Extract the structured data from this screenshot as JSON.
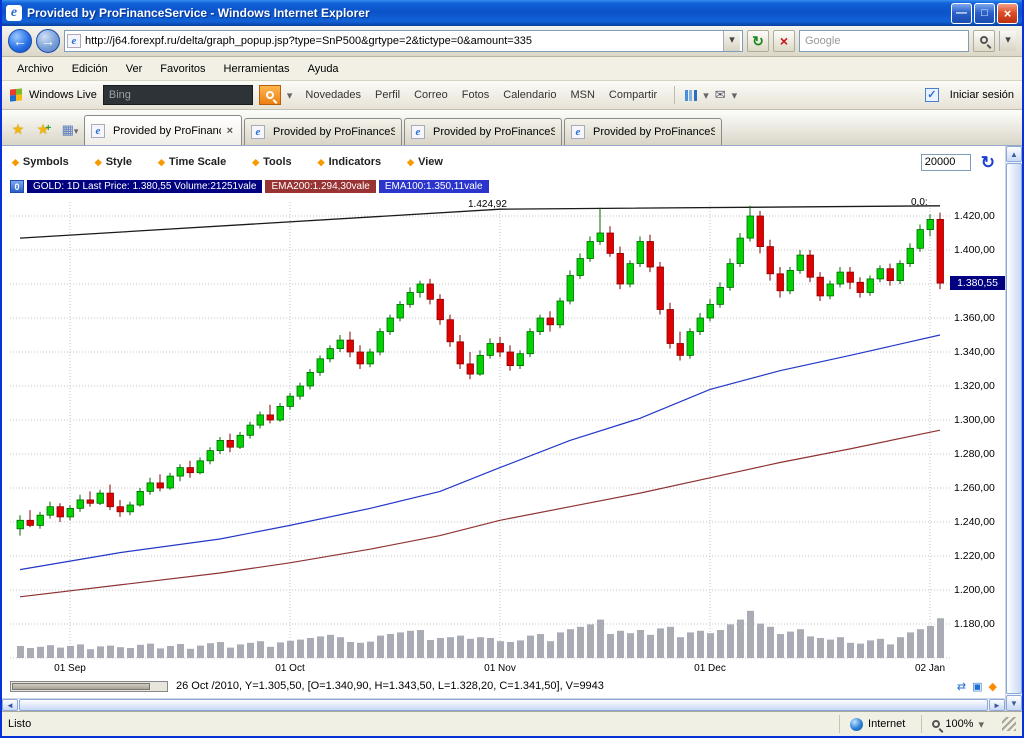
{
  "window": {
    "title": "Provided by ProFinanceService - Windows Internet Explorer"
  },
  "icons": {
    "back": "←",
    "forward": "→",
    "dropdown": "▾",
    "refresh": "↻",
    "stop": "×",
    "star": "★",
    "star_add_plus": "+",
    "quick_tabs": "▦",
    "close": "×",
    "minimize": "—",
    "maximize": "□",
    "diamond": "◆",
    "reload": "↻",
    "mail": "✉",
    "check": "✓",
    "up": "▲",
    "down": "▼",
    "left": "◄",
    "right": "►",
    "autoscroll": "⇄",
    "magnet": "▣",
    "save": "◆",
    "ie_e": "e"
  },
  "nav": {
    "url": "http://j64.forexpf.ru/delta/graph_popup.jsp?type=SnP500&grtype=2&tictype=0&amount=335",
    "search_placeholder": "Google"
  },
  "menu": {
    "items": [
      "Archivo",
      "Edición",
      "Ver",
      "Favoritos",
      "Herramientas",
      "Ayuda"
    ]
  },
  "live": {
    "brand": "Windows Live",
    "search_placeholder": "Bing",
    "links": [
      "Novedades",
      "Perfil",
      "Correo",
      "Fotos",
      "Calendario",
      "MSN",
      "Compartir"
    ],
    "signin": "Iniciar sesión"
  },
  "tabs": [
    {
      "label": "Provided by ProFinance...",
      "active": true
    },
    {
      "label": "Provided by ProFinanceSer...",
      "active": false
    },
    {
      "label": "Provided by ProFinanceSer...",
      "active": false
    },
    {
      "label": "Provided by ProFinanceSer...",
      "active": false
    }
  ],
  "app": {
    "menus": [
      "Symbols",
      "Style",
      "Time Scale",
      "Tools",
      "Indicators",
      "View"
    ],
    "amount_value": "20000",
    "legend": {
      "collapse": "0",
      "main": "GOLD: 1D Last Price: 1.380,55 Volume:21251vale",
      "ema200": "EMA200:1.294,30vale",
      "ema100": "EMA100:1.350,11vale",
      "colors": {
        "main": "#000080",
        "ema200": "#993232",
        "ema100": "#2b35cc"
      }
    },
    "status": "26 Oct /2010, Y=1.305,50, [O=1.340,90, H=1.343,50, L=1.328,20, C=1.341,50], V=9943"
  },
  "status_bar": {
    "left": "Listo",
    "zone": "Internet",
    "zoom": "100%"
  },
  "chart_data": {
    "type": "candlestick",
    "title": "GOLD 1D",
    "last_price": 1380.55,
    "last_price_label": "1.380,55",
    "axis": {
      "max": 1420,
      "min": 1180,
      "step": 20
    },
    "y_ticks": [
      {
        "v": 1420,
        "label": "1.420,00"
      },
      {
        "v": 1400,
        "label": "1.400,00"
      },
      {
        "v": 1380,
        "label": "1.380,00"
      },
      {
        "v": 1360,
        "label": "1.360,00"
      },
      {
        "v": 1340,
        "label": "1.340,00"
      },
      {
        "v": 1320,
        "label": "1.320,00"
      },
      {
        "v": 1300,
        "label": "1.300,00"
      },
      {
        "v": 1280,
        "label": "1.280,00"
      },
      {
        "v": 1260,
        "label": "1.260,00"
      },
      {
        "v": 1240,
        "label": "1.240,00"
      },
      {
        "v": 1220,
        "label": "1.220,00"
      },
      {
        "v": 1200,
        "label": "1.200,00"
      },
      {
        "v": 1180,
        "label": "1.180,00"
      }
    ],
    "x_labels": [
      {
        "i": 5,
        "label": "01 Sep"
      },
      {
        "i": 27,
        "label": "01 Oct"
      },
      {
        "i": 48,
        "label": "01 Nov"
      },
      {
        "i": 69,
        "label": "01 Dec"
      },
      {
        "i": 91,
        "label": "02 Jan"
      }
    ],
    "annotations": {
      "high": "1.424,92",
      "crosshair": "0,0:"
    },
    "trend_line": [
      [
        0,
        1407
      ],
      [
        48,
        1424
      ],
      [
        92,
        1426
      ]
    ],
    "ema100": {
      "name": "EMA100",
      "last": 1350.11,
      "color": "#2438c8",
      "points": [
        [
          0,
          1212
        ],
        [
          10,
          1222
        ],
        [
          20,
          1230
        ],
        [
          27,
          1238
        ],
        [
          35,
          1248
        ],
        [
          42,
          1258
        ],
        [
          48,
          1272
        ],
        [
          55,
          1288
        ],
        [
          62,
          1301
        ],
        [
          69,
          1318
        ],
        [
          76,
          1329
        ],
        [
          83,
          1338
        ],
        [
          92,
          1350
        ]
      ]
    },
    "ema200": {
      "name": "EMA200",
      "last": 1294.3,
      "color": "#8f3333",
      "points": [
        [
          0,
          1196
        ],
        [
          10,
          1203
        ],
        [
          20,
          1210
        ],
        [
          27,
          1216
        ],
        [
          35,
          1224
        ],
        [
          42,
          1232
        ],
        [
          48,
          1241
        ],
        [
          55,
          1249
        ],
        [
          62,
          1257
        ],
        [
          69,
          1266
        ],
        [
          76,
          1275
        ],
        [
          83,
          1283
        ],
        [
          92,
          1294
        ]
      ]
    },
    "colors": {
      "up": "#00d400",
      "up_border": "#006a00",
      "down": "#e10000",
      "down_border": "#8a0000",
      "volume": "#aaacb5",
      "grid": "#c4c4c4",
      "trend": "#1a1a1a",
      "tag_bg": "#000080"
    },
    "candles": [
      [
        1236,
        1244,
        1232,
        1241,
        3000
      ],
      [
        1241,
        1247,
        1237,
        1238,
        2500
      ],
      [
        1238,
        1246,
        1236,
        1244,
        2800
      ],
      [
        1244,
        1252,
        1242,
        1249,
        3200
      ],
      [
        1249,
        1251,
        1240,
        1243,
        2600
      ],
      [
        1243,
        1250,
        1241,
        1248,
        3000
      ],
      [
        1248,
        1256,
        1246,
        1253,
        3400
      ],
      [
        1253,
        1258,
        1249,
        1251,
        2200
      ],
      [
        1251,
        1259,
        1250,
        1257,
        2900
      ],
      [
        1257,
        1262,
        1247,
        1249,
        3100
      ],
      [
        1249,
        1253,
        1243,
        1246,
        2700
      ],
      [
        1246,
        1252,
        1244,
        1250,
        2500
      ],
      [
        1250,
        1260,
        1249,
        1258,
        3300
      ],
      [
        1258,
        1266,
        1256,
        1263,
        3600
      ],
      [
        1263,
        1268,
        1258,
        1260,
        2400
      ],
      [
        1260,
        1269,
        1259,
        1267,
        3000
      ],
      [
        1267,
        1274,
        1264,
        1272,
        3500
      ],
      [
        1272,
        1276,
        1266,
        1269,
        2300
      ],
      [
        1269,
        1278,
        1268,
        1276,
        3100
      ],
      [
        1276,
        1284,
        1274,
        1282,
        3700
      ],
      [
        1282,
        1290,
        1280,
        1288,
        4000
      ],
      [
        1288,
        1292,
        1281,
        1284,
        2600
      ],
      [
        1284,
        1293,
        1283,
        1291,
        3400
      ],
      [
        1291,
        1299,
        1289,
        1297,
        3800
      ],
      [
        1297,
        1305,
        1295,
        1303,
        4200
      ],
      [
        1303,
        1309,
        1298,
        1300,
        2800
      ],
      [
        1300,
        1310,
        1299,
        1308,
        3900
      ],
      [
        1308,
        1316,
        1306,
        1314,
        4300
      ],
      [
        1314,
        1322,
        1312,
        1320,
        4600
      ],
      [
        1320,
        1330,
        1318,
        1328,
        5000
      ],
      [
        1328,
        1338,
        1326,
        1336,
        5400
      ],
      [
        1336,
        1344,
        1334,
        1342,
        5800
      ],
      [
        1342,
        1350,
        1340,
        1347,
        5200
      ],
      [
        1347,
        1352,
        1337,
        1340,
        4000
      ],
      [
        1340,
        1344,
        1330,
        1333,
        3800
      ],
      [
        1333,
        1342,
        1331,
        1340,
        4100
      ],
      [
        1340,
        1354,
        1338,
        1352,
        5600
      ],
      [
        1352,
        1362,
        1350,
        1360,
        6000
      ],
      [
        1360,
        1370,
        1358,
        1368,
        6400
      ],
      [
        1368,
        1378,
        1366,
        1375,
        6800
      ],
      [
        1375,
        1382,
        1372,
        1380,
        7000
      ],
      [
        1380,
        1383,
        1368,
        1371,
        4500
      ],
      [
        1371,
        1374,
        1356,
        1359,
        5000
      ],
      [
        1359,
        1362,
        1343,
        1346,
        5200
      ],
      [
        1346,
        1350,
        1330,
        1333,
        5600
      ],
      [
        1333,
        1340,
        1324,
        1327,
        4800
      ],
      [
        1327,
        1341,
        1326,
        1338,
        5200
      ],
      [
        1338,
        1348,
        1336,
        1345,
        5000
      ],
      [
        1345,
        1349,
        1337,
        1340,
        4200
      ],
      [
        1340,
        1344,
        1329,
        1332,
        4000
      ],
      [
        1332,
        1341,
        1330,
        1339,
        4400
      ],
      [
        1339,
        1354,
        1337,
        1352,
        5600
      ],
      [
        1352,
        1362,
        1350,
        1360,
        6000
      ],
      [
        1360,
        1364,
        1352,
        1356,
        4200
      ],
      [
        1356,
        1372,
        1354,
        1370,
        6400
      ],
      [
        1370,
        1388,
        1368,
        1385,
        7200
      ],
      [
        1385,
        1398,
        1383,
        1395,
        7800
      ],
      [
        1395,
        1408,
        1393,
        1405,
        8400
      ],
      [
        1405,
        1424.9,
        1403,
        1410,
        9600
      ],
      [
        1410,
        1414,
        1396,
        1398,
        6000
      ],
      [
        1398,
        1402,
        1377,
        1380,
        6800
      ],
      [
        1380,
        1394,
        1378,
        1392,
        6200
      ],
      [
        1392,
        1408,
        1390,
        1405,
        7000
      ],
      [
        1405,
        1409,
        1387,
        1390,
        5800
      ],
      [
        1390,
        1393,
        1362,
        1365,
        7400
      ],
      [
        1365,
        1369,
        1342,
        1345,
        7800
      ],
      [
        1345,
        1352,
        1335,
        1338,
        5200
      ],
      [
        1338,
        1354,
        1336,
        1352,
        6400
      ],
      [
        1352,
        1363,
        1350,
        1360,
        6800
      ],
      [
        1360,
        1371,
        1358,
        1368,
        6200
      ],
      [
        1368,
        1381,
        1366,
        1378,
        7000
      ],
      [
        1378,
        1395,
        1376,
        1392,
        8400
      ],
      [
        1392,
        1410,
        1390,
        1407,
        9600
      ],
      [
        1407,
        1426,
        1405,
        1420,
        11800
      ],
      [
        1420,
        1423,
        1398,
        1402,
        8600
      ],
      [
        1402,
        1406,
        1382,
        1386,
        7800
      ],
      [
        1386,
        1390,
        1372,
        1376,
        6000
      ],
      [
        1376,
        1390,
        1374,
        1388,
        6600
      ],
      [
        1388,
        1400,
        1386,
        1397,
        7200
      ],
      [
        1397,
        1400,
        1381,
        1384,
        5400
      ],
      [
        1384,
        1387,
        1370,
        1373,
        5000
      ],
      [
        1373,
        1382,
        1371,
        1380,
        4600
      ],
      [
        1380,
        1390,
        1378,
        1387,
        5200
      ],
      [
        1387,
        1390,
        1377,
        1381,
        3800
      ],
      [
        1381,
        1384,
        1372,
        1375,
        3600
      ],
      [
        1375,
        1385,
        1373,
        1383,
        4400
      ],
      [
        1383,
        1391,
        1381,
        1389,
        4800
      ],
      [
        1389,
        1392,
        1379,
        1382,
        3400
      ],
      [
        1382,
        1394,
        1380,
        1392,
        5200
      ],
      [
        1392,
        1404,
        1390,
        1401,
        6400
      ],
      [
        1401,
        1415,
        1399,
        1412,
        7200
      ],
      [
        1412,
        1421,
        1408,
        1418,
        8000
      ],
      [
        1418,
        1422,
        1377,
        1380.55,
        9943
      ]
    ]
  }
}
